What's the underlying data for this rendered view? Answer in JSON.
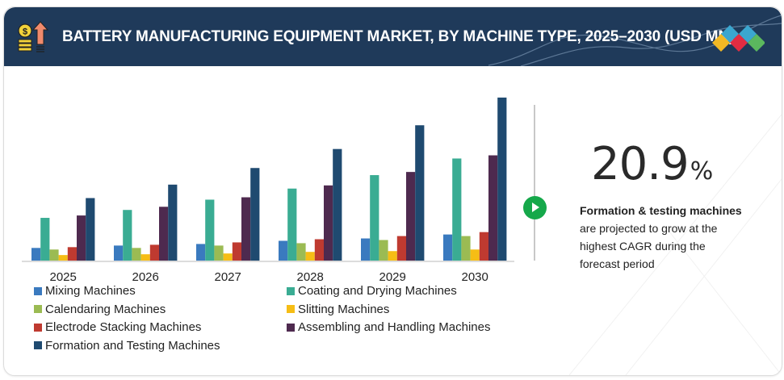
{
  "header": {
    "title": "BATTERY MANUFACTURING EQUIPMENT MARKET, BY MACHINE TYPE, 2025–2030 (USD MN)",
    "icon": "coins-growth-icon",
    "logo": "diamond-tiles-logo"
  },
  "colors": {
    "header_bg": "#1f3a5a",
    "accent_green": "#15a84a",
    "logo_tiles": [
      "#f2b824",
      "#3ba6cf",
      "#e22c42",
      "#3ba6cf",
      "#5bb85e"
    ]
  },
  "highlight": {
    "value": "20.9",
    "unit": "%",
    "bold_text": "Formation & testing machines",
    "text_lines": [
      "are projected to grow at the",
      "highest CAGR during the",
      "forecast period"
    ],
    "play_icon": "play-circle-icon"
  },
  "chart_data": {
    "type": "bar",
    "title": "BATTERY MANUFACTURING EQUIPMENT MARKET, BY MACHINE TYPE, 2025–2030 (USD MN)",
    "xlabel": "",
    "ylabel": "",
    "y_axis_shown": false,
    "value_units": "relative (no y-axis labels shown; estimated from bar heights)",
    "ylim": [
      0,
      210
    ],
    "grid": false,
    "legend_position": "bottom",
    "categories": [
      "2025",
      "2026",
      "2027",
      "2028",
      "2029",
      "2030"
    ],
    "series": [
      {
        "name": "Mixing Machines",
        "color": "#3a7abf",
        "values": [
          16,
          19,
          21,
          25,
          28,
          33
        ]
      },
      {
        "name": "Coating and Drying Machines",
        "color": "#3aac93",
        "values": [
          54,
          64,
          77,
          91,
          108,
          129
        ]
      },
      {
        "name": "Calendaring Machines",
        "color": "#9bbb53",
        "values": [
          14,
          16,
          19,
          22,
          26,
          31
        ]
      },
      {
        "name": "Slitting Machines",
        "color": "#f6bd15",
        "values": [
          7,
          8,
          9,
          11,
          12,
          14
        ]
      },
      {
        "name": "Electrode Stacking Machines",
        "color": "#bf3a30",
        "values": [
          17,
          20,
          23,
          27,
          31,
          36
        ]
      },
      {
        "name": "Assembling and Handling Machines",
        "color": "#4e2a4f",
        "values": [
          57,
          68,
          80,
          95,
          112,
          133
        ]
      },
      {
        "name": "Formation and Testing Machines",
        "color": "#1f4a70",
        "values": [
          79,
          96,
          117,
          141,
          171,
          206
        ]
      }
    ]
  }
}
